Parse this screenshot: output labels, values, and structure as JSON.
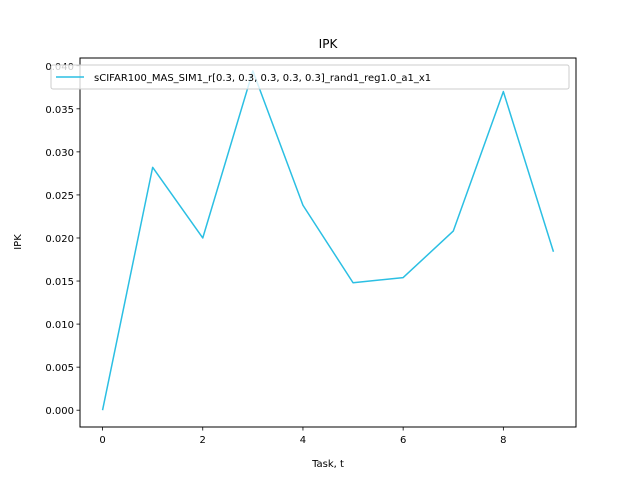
{
  "chart_data": {
    "type": "line",
    "title": "IPK",
    "xlabel": "Task, t",
    "ylabel": "IPK",
    "x": [
      0,
      1,
      2,
      3,
      4,
      5,
      6,
      7,
      8,
      9
    ],
    "series": [
      {
        "name": "sCIFAR100_MAS_SIM1_r[0.3, 0.3, 0.3, 0.3, 0.3]_rand1_reg1.0_a1_x1",
        "values": [
          0.0,
          0.0282,
          0.02,
          0.0394,
          0.0238,
          0.0148,
          0.0154,
          0.0208,
          0.037,
          0.0184
        ],
        "color": "#2bbfe3"
      }
    ],
    "xlim": [
      -0.45,
      9.45
    ],
    "ylim": [
      -0.00195,
      0.0409
    ],
    "xticks": [
      0,
      2,
      4,
      6,
      8
    ],
    "xtick_labels": [
      "0",
      "2",
      "4",
      "6",
      "8"
    ],
    "yticks": [
      0.0,
      0.005,
      0.01,
      0.015,
      0.02,
      0.025,
      0.03,
      0.035,
      0.04
    ],
    "ytick_labels": [
      "0.000",
      "0.005",
      "0.010",
      "0.015",
      "0.020",
      "0.025",
      "0.030",
      "0.035",
      "0.040"
    ],
    "grid": false,
    "legend_position": "top"
  }
}
